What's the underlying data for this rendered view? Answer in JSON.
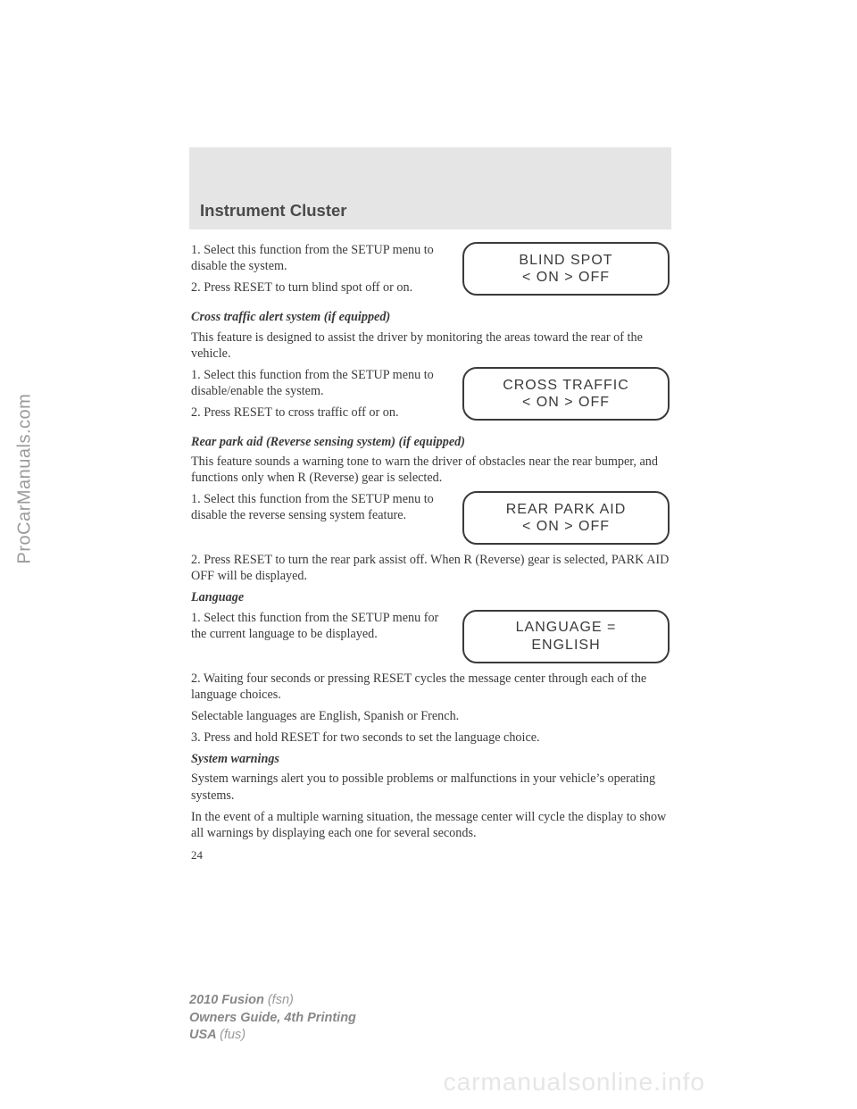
{
  "watermarks": {
    "left": "ProCarManuals.com",
    "bottom": "carmanualsonline.info"
  },
  "header": {
    "title": "Instrument Cluster"
  },
  "sections": {
    "blind_spot": {
      "s1": "1. Select this function from the SETUP menu to disable the system.",
      "s2": "2. Press RESET to turn blind spot off or on.",
      "disp1": "BLIND SPOT",
      "disp2": "< ON > OFF"
    },
    "cross": {
      "head": "Cross traffic alert system (if equipped)",
      "intro": "This feature is designed to assist the driver by monitoring the areas toward the rear of the vehicle.",
      "s1": "1. Select this function from the SETUP menu to disable/enable the system.",
      "s2": "2. Press RESET to cross traffic off or on.",
      "disp1": "CROSS TRAFFIC",
      "disp2": "< ON > OFF"
    },
    "rear": {
      "head": "Rear park aid (Reverse sensing system) (if equipped)",
      "intro": "This feature sounds a warning tone to warn the driver of obstacles near the rear bumper, and functions only when R (Reverse) gear is selected.",
      "s1": "1. Select this function from the SETUP menu to disable the reverse sensing system feature.",
      "s2": "2. Press RESET to turn the rear park assist off. When R (Reverse) gear is selected, PARK AID OFF will be displayed.",
      "disp1": "REAR PARK AID",
      "disp2": "< ON > OFF"
    },
    "lang": {
      "head": "Language",
      "s1": "1. Select this function from the SETUP menu for the current language to be displayed.",
      "s2": "2. Waiting four seconds or pressing RESET cycles the message center through each of the language choices.",
      "s3": "Selectable languages are English, Spanish or French.",
      "s4": "3. Press and hold RESET for two seconds to set the language choice.",
      "disp1": "LANGUAGE =",
      "disp2": "ENGLISH"
    },
    "syswarn": {
      "head": "System warnings",
      "p1": "System warnings alert you to possible problems or malfunctions in your vehicle’s operating systems.",
      "p2": "In the event of a multiple warning situation, the message center will cycle the display to show all warnings by displaying each one for several seconds."
    }
  },
  "page_number": "24",
  "footer": {
    "l1b": "2010 Fusion ",
    "l1": "(fsn)",
    "l2b": "Owners Guide, 4th Printing",
    "l3b": "USA ",
    "l3": "(fus)"
  }
}
